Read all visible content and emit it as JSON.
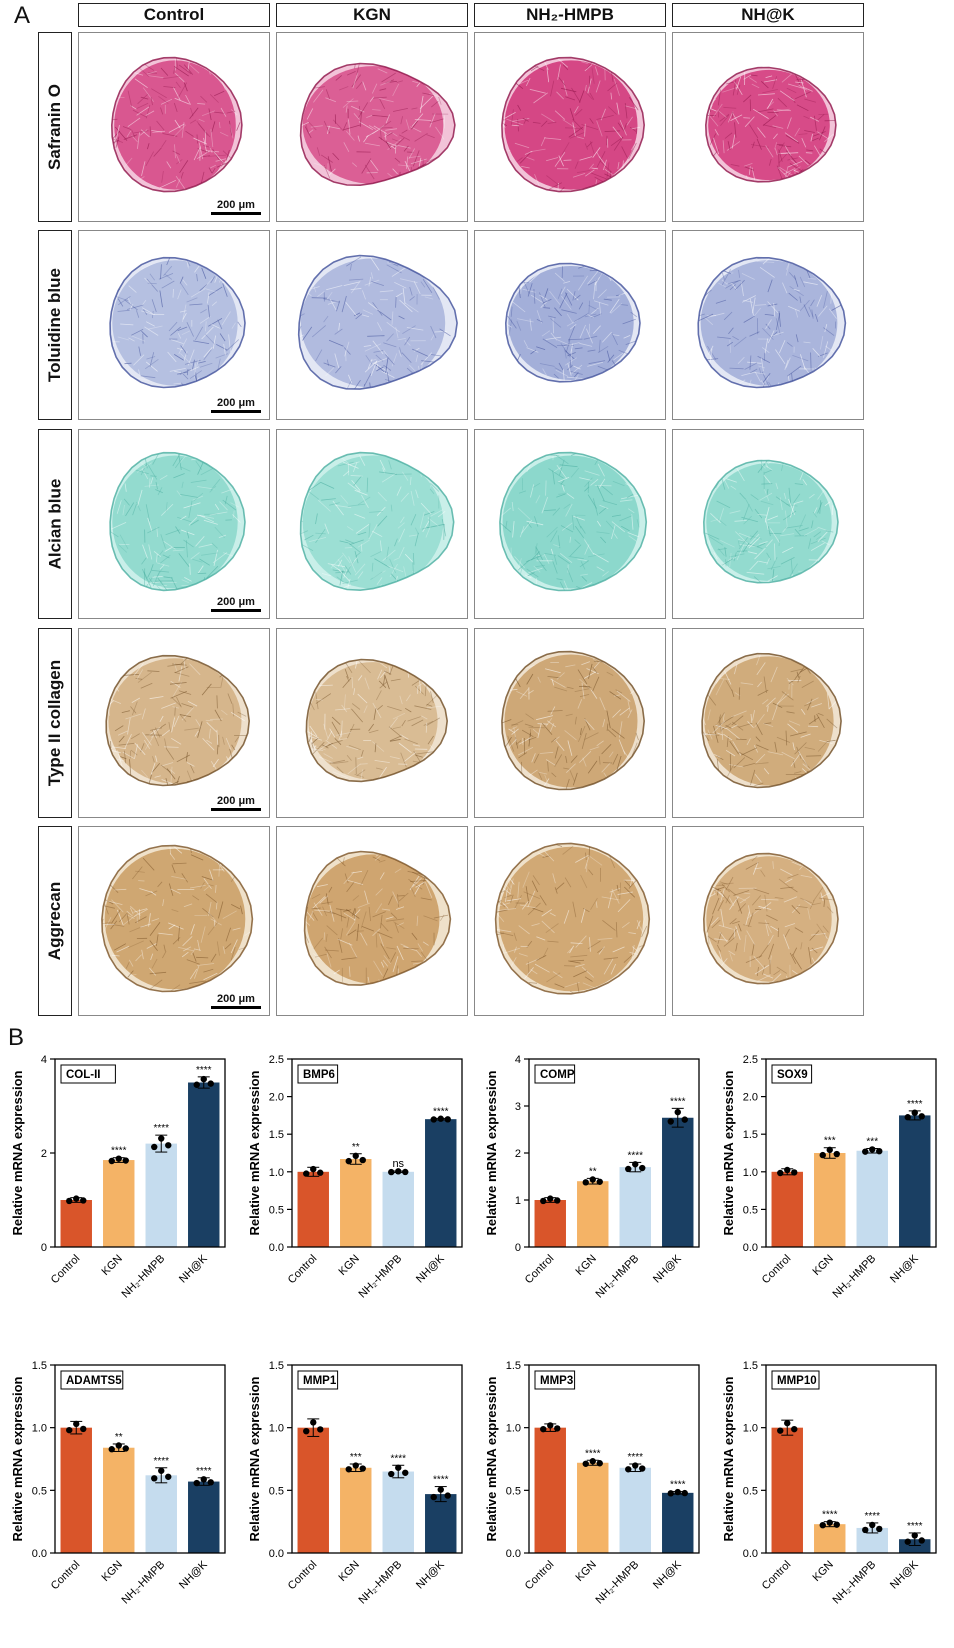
{
  "panel_a": {
    "letter": "A",
    "columns": [
      "Control",
      "KGN",
      "NH₂-HMPB",
      "NH@K"
    ],
    "rows": [
      {
        "label": "Safranin O",
        "stain": "#d23a7c",
        "light": "#f2c3d8",
        "dark": "#8d1247"
      },
      {
        "label": "Toluidine blue",
        "stain": "#8f9ed0",
        "light": "#e3e7f4",
        "dark": "#3f4f9a"
      },
      {
        "label": "Alcian blue",
        "stain": "#7fd3c6",
        "light": "#c9efe9",
        "dark": "#4aaea0"
      },
      {
        "label": "Type II collagen",
        "stain": "#c9a06a",
        "light": "#eee0cc",
        "dark": "#6e4b22"
      },
      {
        "label": "Aggrecan",
        "stain": "#c89a5e",
        "light": "#efe1ca",
        "dark": "#7a5226"
      }
    ],
    "scale_bar": "200 μm"
  },
  "panel_b": {
    "letter": "B",
    "ylabel": "Relative mRNA expression",
    "categories": [
      "Control",
      "KGN",
      "NH₂-HMPB",
      "NH@K"
    ],
    "colors": [
      "#d9552a",
      "#f4b366",
      "#c5dcee",
      "#1a3f63"
    ]
  },
  "chart_data": [
    {
      "type": "bar",
      "title": "COL-II",
      "categories": [
        "Control",
        "KGN",
        "NH₂-HMPB",
        "NH@K"
      ],
      "values": [
        1.0,
        1.85,
        2.2,
        3.5
      ],
      "errors": [
        0.05,
        0.05,
        0.18,
        0.12
      ],
      "significance": [
        "",
        "****",
        "****",
        "****"
      ],
      "ylabel": "Relative mRNA expression",
      "ylim": [
        0,
        4
      ],
      "yticks": [
        "0",
        "2",
        "4"
      ]
    },
    {
      "type": "bar",
      "title": "BMP6",
      "categories": [
        "Control",
        "KGN",
        "NH₂-HMPB",
        "NH@K"
      ],
      "values": [
        1.0,
        1.17,
        1.0,
        1.7
      ],
      "errors": [
        0.06,
        0.07,
        0.01,
        0.01
      ],
      "significance": [
        "",
        "**",
        "ns",
        "****"
      ],
      "ylabel": "Relative mRNA expression",
      "ylim": [
        0,
        2.5
      ],
      "yticks": [
        "0.0",
        "0.5",
        "1.0",
        "1.5",
        "2.0",
        "2.5"
      ]
    },
    {
      "type": "bar",
      "title": "COMP",
      "categories": [
        "Control",
        "KGN",
        "NH₂-HMPB",
        "NH@K"
      ],
      "values": [
        1.0,
        1.4,
        1.7,
        2.75
      ],
      "errors": [
        0.05,
        0.06,
        0.1,
        0.2
      ],
      "significance": [
        "",
        "**",
        "****",
        "****"
      ],
      "ylabel": "Relative mRNA expression",
      "ylim": [
        0,
        4
      ],
      "yticks": [
        "0",
        "1",
        "2",
        "3",
        "4"
      ]
    },
    {
      "type": "bar",
      "title": "SOX9",
      "categories": [
        "Control",
        "KGN",
        "NH₂-HMPB",
        "NH@K"
      ],
      "values": [
        1.0,
        1.25,
        1.28,
        1.75
      ],
      "errors": [
        0.04,
        0.07,
        0.03,
        0.06
      ],
      "significance": [
        "",
        "***",
        "***",
        "****"
      ],
      "ylabel": "Relative mRNA expression",
      "ylim": [
        0,
        2.5
      ],
      "yticks": [
        "0.0",
        "0.5",
        "1.0",
        "1.5",
        "2.0",
        "2.5"
      ]
    },
    {
      "type": "bar",
      "title": "ADAMTS5",
      "categories": [
        "Control",
        "KGN",
        "NH₂-HMPB",
        "NH@K"
      ],
      "values": [
        1.0,
        0.84,
        0.62,
        0.57
      ],
      "errors": [
        0.05,
        0.03,
        0.06,
        0.03
      ],
      "significance": [
        "",
        "**",
        "****",
        "****"
      ],
      "ylabel": "Relative mRNA expression",
      "ylim": [
        0,
        1.5
      ],
      "yticks": [
        "0.0",
        "0.5",
        "1.0",
        "1.5"
      ]
    },
    {
      "type": "bar",
      "title": "MMP1",
      "categories": [
        "Control",
        "KGN",
        "NH₂-HMPB",
        "NH@K"
      ],
      "values": [
        1.0,
        0.68,
        0.65,
        0.47
      ],
      "errors": [
        0.07,
        0.03,
        0.05,
        0.06
      ],
      "significance": [
        "",
        "***",
        "****",
        "****"
      ],
      "ylabel": "Relative mRNA expression",
      "ylim": [
        0,
        1.5
      ],
      "yticks": [
        "0.0",
        "0.5",
        "1.0",
        "1.5"
      ]
    },
    {
      "type": "bar",
      "title": "MMP3",
      "categories": [
        "Control",
        "KGN",
        "NH₂-HMPB",
        "NH@K"
      ],
      "values": [
        1.0,
        0.72,
        0.68,
        0.48
      ],
      "errors": [
        0.03,
        0.02,
        0.03,
        0.01
      ],
      "significance": [
        "",
        "****",
        "****",
        "****"
      ],
      "ylabel": "Relative mRNA expression",
      "ylim": [
        0,
        1.5
      ],
      "yticks": [
        "0.0",
        "0.5",
        "1.0",
        "1.5"
      ]
    },
    {
      "type": "bar",
      "title": "MMP10",
      "categories": [
        "Control",
        "KGN",
        "NH₂-HMPB",
        "NH@K"
      ],
      "values": [
        1.0,
        0.23,
        0.2,
        0.11
      ],
      "errors": [
        0.06,
        0.02,
        0.04,
        0.05
      ],
      "significance": [
        "",
        "****",
        "****",
        "****"
      ],
      "ylabel": "Relative mRNA expression",
      "ylim": [
        0,
        1.5
      ],
      "yticks": [
        "0.0",
        "0.5",
        "1.0",
        "1.5"
      ]
    }
  ]
}
